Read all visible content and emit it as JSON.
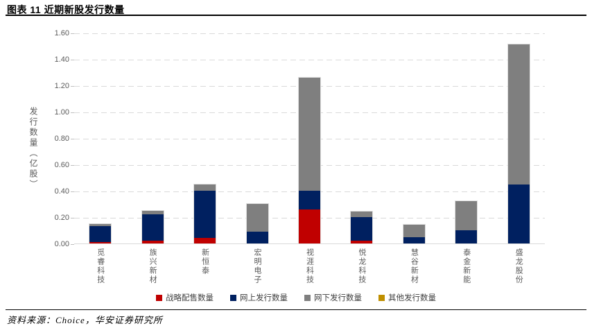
{
  "header": {
    "title": "图表 11 近期新股发行数量"
  },
  "footer": {
    "source": "资料来源：Choice，华安证券研究所"
  },
  "colors": {
    "strategic_red": "#C00000",
    "online_navy": "#002060",
    "offline_gray": "#7F7F7F",
    "other_gold": "#BF8F00",
    "gridline": "#d9d9d9",
    "axis_text": "#595959"
  },
  "chart_data": {
    "type": "bar",
    "stacked": true,
    "title": "图表 11 近期新股发行数量",
    "ylabel": "发行数量（亿股）",
    "xlabel": "",
    "ylim": [
      0,
      1.6
    ],
    "ytick_step": 0.2,
    "ytick_labels": [
      "0.00",
      "0.20",
      "0.40",
      "0.60",
      "0.80",
      "1.00",
      "1.20",
      "1.40",
      "1.60"
    ],
    "grid": "dashed-horizontal",
    "legend_position": "bottom",
    "categories": [
      "觅睿科技",
      "族兴新材",
      "新恒泰",
      "宏明电子",
      "视涯科技",
      "悦龙科技",
      "慧谷新材",
      "泰金新能",
      "盛龙股份"
    ],
    "series": [
      {
        "name": "战略配售数量",
        "color": "#C00000",
        "values": [
          0.01,
          0.02,
          0.04,
          0,
          0.26,
          0.02,
          0,
          0,
          0
        ]
      },
      {
        "name": "网上发行数量",
        "color": "#002060",
        "values": [
          0.12,
          0.2,
          0.36,
          0.09,
          0.14,
          0.18,
          0.05,
          0.1,
          0.45
        ]
      },
      {
        "name": "网下发行数量",
        "color": "#7F7F7F",
        "values": [
          0.015,
          0.03,
          0.05,
          0.21,
          0.86,
          0.04,
          0.09,
          0.22,
          1.06
        ]
      },
      {
        "name": "其他发行数量",
        "color": "#BF8F00",
        "values": [
          0,
          0,
          0,
          0,
          0,
          0,
          0,
          0,
          0
        ]
      }
    ],
    "totals_approx": [
      0.145,
      0.25,
      0.45,
      0.3,
      1.26,
      0.24,
      0.14,
      0.32,
      1.51
    ]
  }
}
